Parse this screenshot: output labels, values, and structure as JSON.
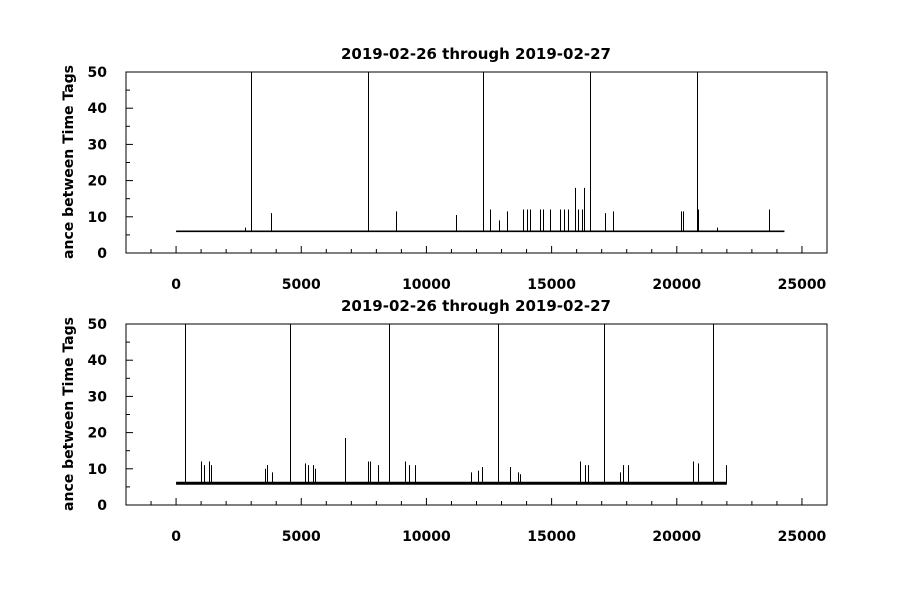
{
  "chart_data": [
    {
      "type": "line",
      "title": "2019-02-26 through 2019-02-27",
      "ylabel": "ance between Time Tags",
      "xlabel": "",
      "xlim": [
        -2000,
        26000
      ],
      "ylim": [
        0,
        50
      ],
      "x_ticks": [
        0,
        5000,
        10000,
        15000,
        20000,
        25000
      ],
      "y_ticks": [
        0,
        10,
        20,
        30,
        40,
        50
      ],
      "x_tick_labels": [
        "0",
        "5000",
        "10000",
        "15000",
        "20000",
        "25000"
      ],
      "y_tick_labels": [
        "0",
        "10",
        "20",
        "30",
        "40",
        "50"
      ],
      "grid": false,
      "baseline": 6,
      "x_range": [
        0,
        24300
      ],
      "series": [
        {
          "spikes": [
            {
              "x": 2750,
              "y": 7
            },
            {
              "x": 3000,
              "y": 50
            },
            {
              "x": 3800,
              "y": 11
            },
            {
              "x": 7650,
              "y": 50
            },
            {
              "x": 8800,
              "y": 11.5
            },
            {
              "x": 11200,
              "y": 10.5
            },
            {
              "x": 12250,
              "y": 50
            },
            {
              "x": 12550,
              "y": 12
            },
            {
              "x": 12900,
              "y": 9
            },
            {
              "x": 13200,
              "y": 11.5
            },
            {
              "x": 13850,
              "y": 12
            },
            {
              "x": 14000,
              "y": 12
            },
            {
              "x": 14150,
              "y": 12
            },
            {
              "x": 14550,
              "y": 12
            },
            {
              "x": 14650,
              "y": 12
            },
            {
              "x": 14950,
              "y": 12
            },
            {
              "x": 15350,
              "y": 12
            },
            {
              "x": 15500,
              "y": 12
            },
            {
              "x": 15650,
              "y": 12
            },
            {
              "x": 15950,
              "y": 18
            },
            {
              "x": 16050,
              "y": 12
            },
            {
              "x": 16200,
              "y": 12
            },
            {
              "x": 16300,
              "y": 18
            },
            {
              "x": 16550,
              "y": 50
            },
            {
              "x": 17150,
              "y": 11
            },
            {
              "x": 17450,
              "y": 11.5
            },
            {
              "x": 20150,
              "y": 11.5
            },
            {
              "x": 20250,
              "y": 11.5
            },
            {
              "x": 20800,
              "y": 50
            },
            {
              "x": 20850,
              "y": 12
            },
            {
              "x": 21600,
              "y": 7
            },
            {
              "x": 23700,
              "y": 12
            }
          ]
        }
      ]
    },
    {
      "type": "line",
      "title": "2019-02-26 through 2019-02-27",
      "ylabel": "ance between Time Tags",
      "xlabel": "",
      "xlim": [
        -2000,
        26000
      ],
      "ylim": [
        0,
        50
      ],
      "x_ticks": [
        0,
        5000,
        10000,
        15000,
        20000,
        25000
      ],
      "y_ticks": [
        0,
        10,
        20,
        30,
        40,
        50
      ],
      "x_tick_labels": [
        "0",
        "5000",
        "10000",
        "15000",
        "20000",
        "25000"
      ],
      "y_tick_labels": [
        "0",
        "10",
        "20",
        "30",
        "40",
        "50"
      ],
      "grid": false,
      "baseline": 6,
      "x_range": [
        0,
        22000
      ],
      "series": [
        {
          "spikes": [
            {
              "x": 350,
              "y": 50
            },
            {
              "x": 1000,
              "y": 12
            },
            {
              "x": 1100,
              "y": 11
            },
            {
              "x": 1300,
              "y": 12
            },
            {
              "x": 1400,
              "y": 11
            },
            {
              "x": 3550,
              "y": 10
            },
            {
              "x": 3650,
              "y": 11
            },
            {
              "x": 3850,
              "y": 9
            },
            {
              "x": 4550,
              "y": 50
            },
            {
              "x": 5150,
              "y": 11.5
            },
            {
              "x": 5250,
              "y": 11
            },
            {
              "x": 5450,
              "y": 11
            },
            {
              "x": 5550,
              "y": 10
            },
            {
              "x": 6750,
              "y": 18.5
            },
            {
              "x": 7650,
              "y": 12
            },
            {
              "x": 7750,
              "y": 12
            },
            {
              "x": 8050,
              "y": 11
            },
            {
              "x": 8500,
              "y": 50
            },
            {
              "x": 9150,
              "y": 12
            },
            {
              "x": 9300,
              "y": 11
            },
            {
              "x": 9550,
              "y": 11
            },
            {
              "x": 11800,
              "y": 9
            },
            {
              "x": 12050,
              "y": 9.5
            },
            {
              "x": 12200,
              "y": 10.5
            },
            {
              "x": 12850,
              "y": 50
            },
            {
              "x": 13350,
              "y": 10.5
            },
            {
              "x": 13650,
              "y": 9
            },
            {
              "x": 13750,
              "y": 8.5
            },
            {
              "x": 16150,
              "y": 12
            },
            {
              "x": 16350,
              "y": 11
            },
            {
              "x": 16450,
              "y": 11
            },
            {
              "x": 17100,
              "y": 50
            },
            {
              "x": 17750,
              "y": 9
            },
            {
              "x": 17850,
              "y": 11
            },
            {
              "x": 18050,
              "y": 11
            },
            {
              "x": 20650,
              "y": 12
            },
            {
              "x": 20850,
              "y": 11.5
            },
            {
              "x": 21450,
              "y": 50
            },
            {
              "x": 21950,
              "y": 11
            }
          ]
        }
      ]
    }
  ]
}
